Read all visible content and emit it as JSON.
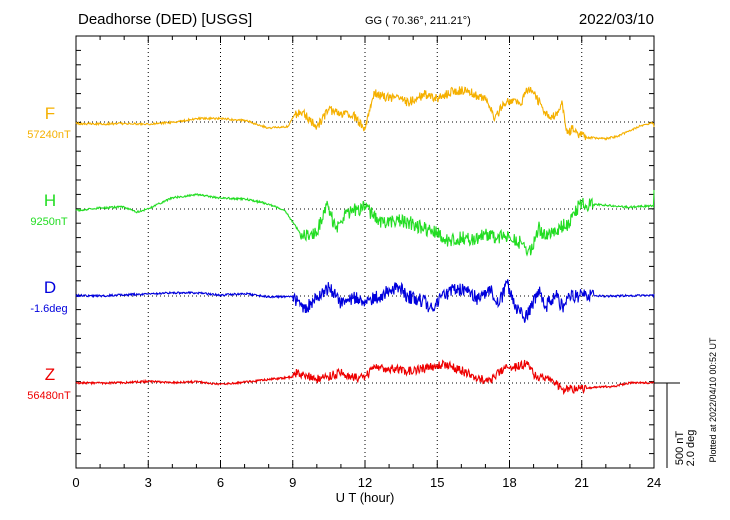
{
  "header": {
    "station": "Deadhorse (DED)  [USGS]",
    "coords": "GG ( 70.36°, 211.21°)",
    "date": "2022/03/10"
  },
  "footer": {
    "plotted": "Plotted at 2022/04/10 00:52 UT"
  },
  "colors": {
    "F": "#f5b000",
    "H": "#22dd22",
    "D": "#0000dd",
    "Z": "#ee0000"
  },
  "chart_data": {
    "type": "line",
    "xlabel": "U T (hour)",
    "xlim": [
      0,
      24
    ],
    "xticks": [
      0,
      3,
      6,
      9,
      12,
      15,
      18,
      21,
      24
    ],
    "scale": {
      "nT": "500 nT",
      "deg": "2.0 deg"
    },
    "series": [
      {
        "key": "F",
        "name": "F",
        "baseline_label": "57240nT",
        "unit": "nT",
        "points": [
          [
            0,
            9
          ],
          [
            1,
            12
          ],
          [
            2,
            9
          ],
          [
            3,
            13
          ],
          [
            4,
            2
          ],
          [
            5,
            -20
          ],
          [
            6,
            -20
          ],
          [
            7,
            -9
          ],
          [
            8,
            35
          ],
          [
            8.8,
            26
          ],
          [
            9.1,
            -45
          ],
          [
            9.4,
            -60
          ],
          [
            10,
            29
          ],
          [
            10.5,
            -72
          ],
          [
            11,
            -49
          ],
          [
            11.5,
            -40
          ],
          [
            12,
            42
          ],
          [
            12.4,
            -173
          ],
          [
            12.7,
            -153
          ],
          [
            13.2,
            -142
          ],
          [
            13.8,
            -116
          ],
          [
            14.5,
            -162
          ],
          [
            15,
            -139
          ],
          [
            15.7,
            -183
          ],
          [
            16.3,
            -186
          ],
          [
            16.7,
            -149
          ],
          [
            17,
            -133
          ],
          [
            17.4,
            -26
          ],
          [
            17.8,
            -109
          ],
          [
            18.2,
            -135
          ],
          [
            18.5,
            -105
          ],
          [
            18.7,
            -201
          ],
          [
            19,
            -166
          ],
          [
            19.3,
            -105
          ],
          [
            19.6,
            -26
          ],
          [
            19.9,
            -36
          ],
          [
            20.2,
            -107
          ],
          [
            20.4,
            70
          ],
          [
            20.6,
            40
          ],
          [
            20.9,
            70
          ],
          [
            21.2,
            91
          ],
          [
            22,
            98
          ],
          [
            22.5,
            84
          ],
          [
            23,
            49
          ],
          [
            23.5,
            19
          ],
          [
            24,
            5
          ]
        ]
      },
      {
        "key": "H",
        "name": "H",
        "baseline_label": "9250nT",
        "unit": "nT",
        "points": [
          [
            0,
            9
          ],
          [
            1,
            -6
          ],
          [
            2,
            -12
          ],
          [
            2.5,
            19
          ],
          [
            3,
            -1
          ],
          [
            4,
            -66
          ],
          [
            5,
            -84
          ],
          [
            6,
            -64
          ],
          [
            7,
            -59
          ],
          [
            8,
            -30
          ],
          [
            8.7,
            12
          ],
          [
            9.3,
            142
          ],
          [
            9.6,
            147
          ],
          [
            10,
            140
          ],
          [
            10.4,
            -21
          ],
          [
            10.8,
            110
          ],
          [
            11.2,
            28
          ],
          [
            12,
            -14
          ],
          [
            12.6,
            72
          ],
          [
            13.2,
            70
          ],
          [
            13.8,
            77
          ],
          [
            14.5,
            119
          ],
          [
            15,
            133
          ],
          [
            15.3,
            177
          ],
          [
            15.6,
            189
          ],
          [
            16,
            168
          ],
          [
            16.5,
            179
          ],
          [
            17,
            144
          ],
          [
            17.5,
            170
          ],
          [
            18,
            161
          ],
          [
            18.5,
            203
          ],
          [
            18.9,
            257
          ],
          [
            19.2,
            105
          ],
          [
            19.5,
            170
          ],
          [
            19.8,
            147
          ],
          [
            20.2,
            98
          ],
          [
            20.5,
            84
          ],
          [
            20.9,
            -28
          ],
          [
            21.5,
            -26
          ],
          [
            22,
            -23
          ],
          [
            22.5,
            -14
          ],
          [
            23,
            -12
          ],
          [
            23.5,
            -16
          ],
          [
            24,
            -19
          ]
        ]
      },
      {
        "key": "D",
        "name": "D",
        "baseline_label": "-1.6deg",
        "unit": "deg",
        "points": [
          [
            0,
            -3
          ],
          [
            1,
            0
          ],
          [
            2,
            -7
          ],
          [
            3,
            -12
          ],
          [
            4,
            -19
          ],
          [
            5,
            -19
          ],
          [
            6,
            -5
          ],
          [
            7,
            -14
          ],
          [
            8,
            5
          ],
          [
            9,
            2
          ],
          [
            9.3,
            56
          ],
          [
            9.6,
            68
          ],
          [
            10,
            14
          ],
          [
            10.5,
            -52
          ],
          [
            11,
            40
          ],
          [
            11.5,
            16
          ],
          [
            12,
            21
          ],
          [
            12.6,
            4
          ],
          [
            13,
            -45
          ],
          [
            13.4,
            -52
          ],
          [
            13.8,
            4
          ],
          [
            14.3,
            23
          ],
          [
            14.8,
            72
          ],
          [
            15.3,
            -7
          ],
          [
            15.8,
            -42
          ],
          [
            16.3,
            -28
          ],
          [
            16.7,
            21
          ],
          [
            17.2,
            -35
          ],
          [
            17.6,
            35
          ],
          [
            17.9,
            -77
          ],
          [
            18.2,
            58
          ],
          [
            18.6,
            128
          ],
          [
            18.9,
            72
          ],
          [
            19.2,
            -40
          ],
          [
            19.5,
            68
          ],
          [
            19.9,
            -7
          ],
          [
            20.2,
            65
          ],
          [
            20.5,
            2
          ],
          [
            20.9,
            -3
          ],
          [
            21.5,
            -5
          ],
          [
            22,
            2
          ],
          [
            23,
            -3
          ],
          [
            24,
            -2
          ]
        ]
      },
      {
        "key": "Z",
        "name": "Z",
        "baseline_label": "56480nT",
        "unit": "nT",
        "points": [
          [
            0,
            0
          ],
          [
            1,
            0
          ],
          [
            2,
            -2
          ],
          [
            3,
            -9
          ],
          [
            4,
            -2
          ],
          [
            5,
            -7
          ],
          [
            6,
            9
          ],
          [
            7,
            -5
          ],
          [
            8,
            -21
          ],
          [
            9,
            -35
          ],
          [
            9.2,
            -65
          ],
          [
            10,
            -23
          ],
          [
            11,
            -58
          ],
          [
            11.5,
            -30
          ],
          [
            12,
            -35
          ],
          [
            12.4,
            -100
          ],
          [
            13,
            -84
          ],
          [
            13.8,
            -70
          ],
          [
            14.5,
            -86
          ],
          [
            15.3,
            -109
          ],
          [
            16,
            -74
          ],
          [
            16.7,
            -28
          ],
          [
            17.2,
            -14
          ],
          [
            17.8,
            -86
          ],
          [
            18.3,
            -93
          ],
          [
            18.7,
            -114
          ],
          [
            19,
            -51
          ],
          [
            19.4,
            -23
          ],
          [
            19.8,
            -14
          ],
          [
            20.2,
            37
          ],
          [
            20.6,
            33
          ],
          [
            21.2,
            33
          ],
          [
            21.7,
            23
          ],
          [
            22.3,
            21
          ],
          [
            23,
            -2
          ],
          [
            23.5,
            -2
          ],
          [
            24,
            0
          ]
        ]
      }
    ]
  }
}
